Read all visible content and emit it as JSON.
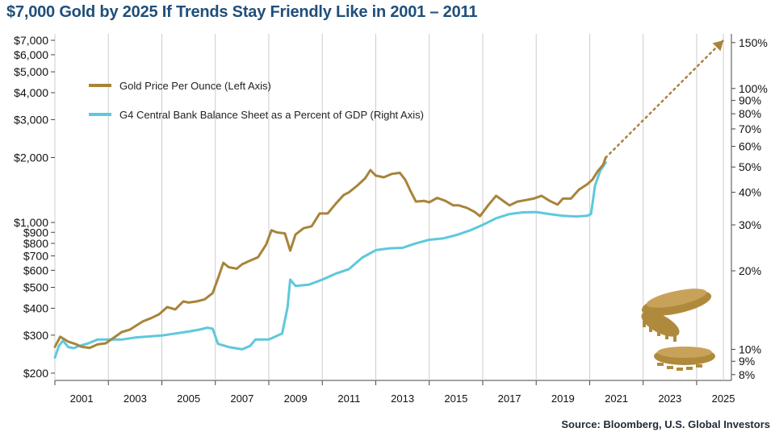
{
  "title": "$7,000 Gold by 2025 If Trends Stay Friendly Like in 2001 – 2011",
  "source": "Source: Bloomberg, U.S. Global Investors",
  "colors": {
    "gold": "#a8843a",
    "blue": "#5ec8dc",
    "title": "#1f4f7a",
    "coin": "#b08a3c"
  },
  "icons": {
    "decoration": "gold-coins-icon"
  },
  "chart_data": {
    "type": "line",
    "title": "$7,000 Gold by 2025 If Trends Stay Friendly Like in 2001 – 2011",
    "x_range": [
      2000.0,
      2025.3
    ],
    "x_ticks": [
      "2001",
      "2003",
      "2005",
      "2007",
      "2009",
      "2011",
      "2013",
      "2015",
      "2017",
      "2019",
      "2021",
      "2023",
      "2025"
    ],
    "y_left": {
      "scale": "log",
      "range": [
        185,
        7500
      ],
      "ticks": [
        {
          "v": 7000,
          "label": "$7,000"
        },
        {
          "v": 6000,
          "label": "$6,000"
        },
        {
          "v": 5000,
          "label": "$5,000"
        },
        {
          "v": 4000,
          "label": "$4,000"
        },
        {
          "v": 3000,
          "label": "$3,000"
        },
        {
          "v": 2000,
          "label": "$2,000"
        },
        {
          "v": 1000,
          "label": "$1,000"
        },
        {
          "v": 900,
          "label": "$900"
        },
        {
          "v": 800,
          "label": "$800"
        },
        {
          "v": 700,
          "label": "$700"
        },
        {
          "v": 600,
          "label": "$600"
        },
        {
          "v": 500,
          "label": "$500"
        },
        {
          "v": 400,
          "label": "$400"
        },
        {
          "v": 300,
          "label": "$300"
        },
        {
          "v": 200,
          "label": "$200"
        }
      ]
    },
    "y_right": {
      "scale": "log",
      "range": [
        7.6,
        162
      ],
      "ticks": [
        {
          "v": 150,
          "label": "150%"
        },
        {
          "v": 100,
          "label": "100%"
        },
        {
          "v": 90,
          "label": "90%"
        },
        {
          "v": 80,
          "label": "80%"
        },
        {
          "v": 70,
          "label": "70%"
        },
        {
          "v": 60,
          "label": "60%"
        },
        {
          "v": 50,
          "label": "50%"
        },
        {
          "v": 40,
          "label": "40%"
        },
        {
          "v": 30,
          "label": "30%"
        },
        {
          "v": 20,
          "label": "20%"
        },
        {
          "v": 10,
          "label": "10%"
        },
        {
          "v": 9,
          "label": "9%"
        },
        {
          "v": 8,
          "label": "8%"
        }
      ]
    },
    "legend": {
      "placement": "top-left"
    },
    "series": [
      {
        "name": "Gold Price Per Ounce (Left Axis)",
        "axis": "left",
        "color": "#a8843a",
        "points": [
          [
            2000.0,
            265
          ],
          [
            2000.2,
            295
          ],
          [
            2000.5,
            280
          ],
          [
            2000.8,
            272
          ],
          [
            2001.0,
            265
          ],
          [
            2001.3,
            262
          ],
          [
            2001.6,
            272
          ],
          [
            2001.9,
            275
          ],
          [
            2002.2,
            292
          ],
          [
            2002.5,
            310
          ],
          [
            2002.8,
            318
          ],
          [
            2003.0,
            330
          ],
          [
            2003.3,
            348
          ],
          [
            2003.6,
            360
          ],
          [
            2003.9,
            375
          ],
          [
            2004.2,
            405
          ],
          [
            2004.5,
            395
          ],
          [
            2004.8,
            430
          ],
          [
            2005.0,
            425
          ],
          [
            2005.3,
            430
          ],
          [
            2005.6,
            440
          ],
          [
            2005.9,
            470
          ],
          [
            2006.1,
            550
          ],
          [
            2006.3,
            650
          ],
          [
            2006.5,
            620
          ],
          [
            2006.8,
            610
          ],
          [
            2007.0,
            640
          ],
          [
            2007.3,
            665
          ],
          [
            2007.6,
            690
          ],
          [
            2007.9,
            790
          ],
          [
            2008.1,
            920
          ],
          [
            2008.3,
            900
          ],
          [
            2008.6,
            890
          ],
          [
            2008.8,
            740
          ],
          [
            2009.0,
            880
          ],
          [
            2009.3,
            940
          ],
          [
            2009.6,
            960
          ],
          [
            2009.9,
            1100
          ],
          [
            2010.2,
            1100
          ],
          [
            2010.5,
            1220
          ],
          [
            2010.8,
            1340
          ],
          [
            2011.0,
            1380
          ],
          [
            2011.3,
            1480
          ],
          [
            2011.6,
            1600
          ],
          [
            2011.8,
            1750
          ],
          [
            2012.0,
            1650
          ],
          [
            2012.3,
            1620
          ],
          [
            2012.6,
            1680
          ],
          [
            2012.9,
            1700
          ],
          [
            2013.1,
            1580
          ],
          [
            2013.3,
            1400
          ],
          [
            2013.5,
            1250
          ],
          [
            2013.8,
            1260
          ],
          [
            2014.0,
            1240
          ],
          [
            2014.3,
            1300
          ],
          [
            2014.6,
            1260
          ],
          [
            2014.9,
            1200
          ],
          [
            2015.1,
            1200
          ],
          [
            2015.4,
            1170
          ],
          [
            2015.7,
            1120
          ],
          [
            2015.9,
            1070
          ],
          [
            2016.2,
            1200
          ],
          [
            2016.5,
            1330
          ],
          [
            2016.8,
            1250
          ],
          [
            2017.0,
            1200
          ],
          [
            2017.3,
            1250
          ],
          [
            2017.6,
            1270
          ],
          [
            2017.9,
            1290
          ],
          [
            2018.2,
            1330
          ],
          [
            2018.5,
            1260
          ],
          [
            2018.8,
            1210
          ],
          [
            2019.0,
            1290
          ],
          [
            2019.3,
            1290
          ],
          [
            2019.6,
            1420
          ],
          [
            2019.9,
            1500
          ],
          [
            2020.1,
            1580
          ],
          [
            2020.3,
            1730
          ],
          [
            2020.5,
            1850
          ],
          [
            2020.6,
            2000
          ]
        ]
      },
      {
        "name": "G4 Central Bank Balance Sheet as a Percent of GDP (Right Axis)",
        "axis": "right",
        "color": "#5ec8dc",
        "points": [
          [
            2000.0,
            9.3
          ],
          [
            2000.15,
            10.3
          ],
          [
            2000.3,
            10.8
          ],
          [
            2000.5,
            10.2
          ],
          [
            2000.7,
            10.1
          ],
          [
            2000.9,
            10.3
          ],
          [
            2001.2,
            10.5
          ],
          [
            2001.6,
            10.9
          ],
          [
            2002.0,
            10.9
          ],
          [
            2002.5,
            10.9
          ],
          [
            2003.0,
            11.1
          ],
          [
            2003.5,
            11.2
          ],
          [
            2004.0,
            11.3
          ],
          [
            2004.5,
            11.5
          ],
          [
            2005.0,
            11.7
          ],
          [
            2005.4,
            11.9
          ],
          [
            2005.7,
            12.1
          ],
          [
            2005.9,
            12.0
          ],
          [
            2006.1,
            10.5
          ],
          [
            2006.5,
            10.2
          ],
          [
            2007.0,
            10.0
          ],
          [
            2007.3,
            10.3
          ],
          [
            2007.5,
            10.9
          ],
          [
            2008.0,
            10.9
          ],
          [
            2008.5,
            11.5
          ],
          [
            2008.7,
            14.5
          ],
          [
            2008.8,
            18.5
          ],
          [
            2009.0,
            17.5
          ],
          [
            2009.5,
            17.7
          ],
          [
            2010.0,
            18.5
          ],
          [
            2010.5,
            19.5
          ],
          [
            2011.0,
            20.3
          ],
          [
            2011.5,
            22.5
          ],
          [
            2012.0,
            24.0
          ],
          [
            2012.5,
            24.4
          ],
          [
            2013.0,
            24.5
          ],
          [
            2013.5,
            25.5
          ],
          [
            2014.0,
            26.3
          ],
          [
            2014.5,
            26.6
          ],
          [
            2015.0,
            27.4
          ],
          [
            2015.5,
            28.5
          ],
          [
            2016.0,
            30.0
          ],
          [
            2016.5,
            31.8
          ],
          [
            2017.0,
            33.0
          ],
          [
            2017.5,
            33.5
          ],
          [
            2018.0,
            33.6
          ],
          [
            2018.5,
            33.0
          ],
          [
            2019.0,
            32.5
          ],
          [
            2019.5,
            32.3
          ],
          [
            2019.9,
            32.5
          ],
          [
            2020.05,
            33.0
          ],
          [
            2020.2,
            42.5
          ],
          [
            2020.4,
            48.5
          ],
          [
            2020.6,
            52.0
          ]
        ]
      },
      {
        "name": "",
        "axis": "left",
        "color": "#a8843a",
        "style": "dotted-arrow",
        "points": [
          [
            2020.6,
            2000
          ],
          [
            2025.0,
            7000
          ]
        ]
      }
    ]
  }
}
